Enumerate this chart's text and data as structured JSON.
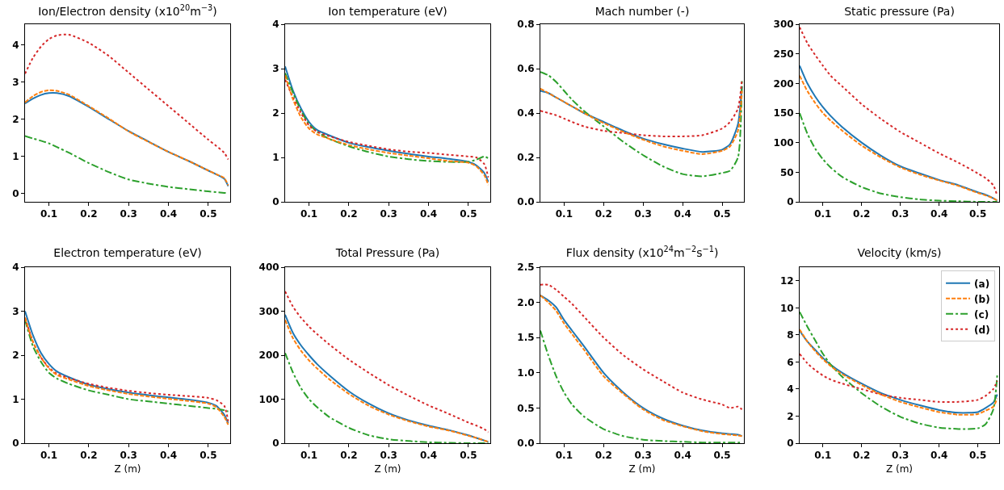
{
  "chart_data": [
    {
      "type": "line",
      "title": "Ion/Electron density (x10$^{20}$m$^{−3}$)",
      "x": [
        0.04,
        0.06,
        0.08,
        0.1,
        0.12,
        0.15,
        0.2,
        0.25,
        0.3,
        0.35,
        0.4,
        0.45,
        0.5,
        0.52,
        0.54,
        0.55
      ],
      "xlim": [
        0.04,
        0.555
      ],
      "xticks": [
        0.1,
        0.2,
        0.3,
        0.4,
        0.5
      ],
      "ylim": [
        -0.22,
        4.55
      ],
      "yticks": [
        0,
        1,
        2,
        3,
        4
      ],
      "series": [
        {
          "color": "#1f77b4",
          "line_style": "solid",
          "values": [
            2.42,
            2.55,
            2.65,
            2.7,
            2.7,
            2.62,
            2.33,
            2.0,
            1.68,
            1.4,
            1.12,
            0.88,
            0.62,
            0.52,
            0.4,
            0.2
          ]
        },
        {
          "color": "#ff7f0e",
          "line_style": "dashed",
          "values": [
            2.45,
            2.62,
            2.73,
            2.78,
            2.76,
            2.66,
            2.35,
            2.02,
            1.67,
            1.39,
            1.12,
            0.88,
            0.62,
            0.52,
            0.42,
            0.22
          ]
        },
        {
          "color": "#2ca02c",
          "line_style": "dashdot",
          "values": [
            1.55,
            1.48,
            1.42,
            1.35,
            1.25,
            1.1,
            0.82,
            0.58,
            0.38,
            0.27,
            0.18,
            0.12,
            0.06,
            0.04,
            0.02,
            0.01
          ]
        },
        {
          "color": "#d62728",
          "line_style": "dotted",
          "values": [
            3.22,
            3.65,
            3.95,
            4.15,
            4.25,
            4.27,
            4.05,
            3.7,
            3.25,
            2.8,
            2.35,
            1.9,
            1.45,
            1.28,
            1.1,
            0.92
          ]
        }
      ]
    },
    {
      "type": "line",
      "title": "Ion temperature (eV)",
      "x": [
        0.04,
        0.06,
        0.08,
        0.1,
        0.12,
        0.15,
        0.2,
        0.25,
        0.3,
        0.35,
        0.4,
        0.45,
        0.5,
        0.52,
        0.54,
        0.55
      ],
      "xlim": [
        0.04,
        0.555
      ],
      "xticks": [
        0.1,
        0.2,
        0.3,
        0.4,
        0.5
      ],
      "ylim": [
        0,
        4
      ],
      "yticks": [
        0,
        1,
        2,
        3,
        4
      ],
      "series": [
        {
          "color": "#1f77b4",
          "line_style": "solid",
          "values": [
            3.05,
            2.5,
            2.1,
            1.8,
            1.62,
            1.5,
            1.33,
            1.23,
            1.15,
            1.08,
            1.02,
            0.97,
            0.9,
            0.82,
            0.65,
            0.45
          ]
        },
        {
          "color": "#ff7f0e",
          "line_style": "dashed",
          "values": [
            2.85,
            2.3,
            1.9,
            1.65,
            1.52,
            1.42,
            1.28,
            1.18,
            1.1,
            1.04,
            0.98,
            0.92,
            0.88,
            0.8,
            0.6,
            0.38
          ]
        },
        {
          "color": "#2ca02c",
          "line_style": "dashdot",
          "values": [
            2.9,
            2.45,
            2.05,
            1.75,
            1.58,
            1.42,
            1.25,
            1.12,
            1.02,
            0.96,
            0.92,
            0.9,
            0.9,
            0.95,
            1.02,
            0.98
          ]
        },
        {
          "color": "#d62728",
          "line_style": "dotted",
          "values": [
            2.75,
            2.35,
            2.0,
            1.72,
            1.58,
            1.48,
            1.35,
            1.26,
            1.18,
            1.13,
            1.1,
            1.06,
            1.02,
            1.0,
            0.85,
            0.55
          ]
        }
      ]
    },
    {
      "type": "line",
      "title": "Mach number (-)",
      "x": [
        0.04,
        0.06,
        0.08,
        0.1,
        0.12,
        0.15,
        0.2,
        0.25,
        0.3,
        0.35,
        0.4,
        0.45,
        0.5,
        0.52,
        0.54,
        0.55
      ],
      "xlim": [
        0.04,
        0.555
      ],
      "xticks": [
        0.1,
        0.2,
        0.3,
        0.4,
        0.5
      ],
      "ylim": [
        0,
        0.8
      ],
      "yticks": [
        {
          "value": 0,
          "label": "0.0"
        },
        0.2,
        0.4,
        0.6,
        0.8
      ],
      "series": [
        {
          "color": "#1f77b4",
          "line_style": "solid",
          "values": [
            0.5,
            0.49,
            0.47,
            0.45,
            0.43,
            0.4,
            0.36,
            0.32,
            0.285,
            0.26,
            0.24,
            0.225,
            0.235,
            0.26,
            0.35,
            0.52
          ]
        },
        {
          "color": "#ff7f0e",
          "line_style": "dashed",
          "values": [
            0.51,
            0.49,
            0.47,
            0.45,
            0.43,
            0.4,
            0.355,
            0.315,
            0.28,
            0.25,
            0.23,
            0.215,
            0.23,
            0.25,
            0.32,
            0.5
          ]
        },
        {
          "color": "#2ca02c",
          "line_style": "dashdot",
          "values": [
            0.585,
            0.57,
            0.54,
            0.5,
            0.46,
            0.41,
            0.34,
            0.27,
            0.21,
            0.16,
            0.125,
            0.115,
            0.13,
            0.14,
            0.2,
            0.55
          ]
        },
        {
          "color": "#d62728",
          "line_style": "dotted",
          "values": [
            0.41,
            0.4,
            0.39,
            0.375,
            0.36,
            0.34,
            0.32,
            0.31,
            0.3,
            0.295,
            0.295,
            0.3,
            0.33,
            0.36,
            0.42,
            0.55
          ]
        }
      ]
    },
    {
      "type": "line",
      "title": "Static pressure (Pa)",
      "x": [
        0.04,
        0.06,
        0.08,
        0.1,
        0.12,
        0.15,
        0.2,
        0.25,
        0.3,
        0.35,
        0.4,
        0.45,
        0.5,
        0.52,
        0.54,
        0.55
      ],
      "xlim": [
        0.04,
        0.555
      ],
      "xticks": [
        0.1,
        0.2,
        0.3,
        0.4,
        0.5
      ],
      "ylim": [
        0,
        300
      ],
      "yticks": [
        0,
        50,
        100,
        150,
        200,
        250,
        300
      ],
      "series": [
        {
          "color": "#1f77b4",
          "line_style": "solid",
          "values": [
            230,
            200,
            178,
            160,
            145,
            126,
            100,
            78,
            60,
            48,
            37,
            28,
            16,
            12,
            6,
            2
          ]
        },
        {
          "color": "#ff7f0e",
          "line_style": "dashed",
          "values": [
            213,
            187,
            167,
            150,
            137,
            120,
            95,
            75,
            58,
            46,
            36,
            27,
            15,
            11,
            6,
            2
          ]
        },
        {
          "color": "#2ca02c",
          "line_style": "dashdot",
          "values": [
            150,
            115,
            90,
            72,
            58,
            42,
            25,
            14,
            8,
            4,
            2,
            1,
            0,
            0,
            0,
            0
          ]
        },
        {
          "color": "#d62728",
          "line_style": "dotted",
          "values": [
            295,
            268,
            248,
            230,
            213,
            195,
            165,
            140,
            118,
            100,
            82,
            66,
            48,
            40,
            28,
            10
          ]
        }
      ]
    },
    {
      "type": "line",
      "title": "Electron temperature (eV)",
      "xlabel": "Z (m)",
      "x": [
        0.04,
        0.06,
        0.08,
        0.1,
        0.12,
        0.15,
        0.2,
        0.25,
        0.3,
        0.35,
        0.4,
        0.45,
        0.5,
        0.52,
        0.54,
        0.55
      ],
      "xlim": [
        0.04,
        0.555
      ],
      "xticks": [
        0.1,
        0.2,
        0.3,
        0.4,
        0.5
      ],
      "ylim": [
        0,
        4
      ],
      "yticks": [
        0,
        1,
        2,
        3,
        4
      ],
      "series": [
        {
          "color": "#1f77b4",
          "line_style": "solid",
          "values": [
            3.0,
            2.45,
            2.05,
            1.8,
            1.63,
            1.5,
            1.33,
            1.23,
            1.15,
            1.09,
            1.04,
            0.99,
            0.92,
            0.85,
            0.65,
            0.45
          ]
        },
        {
          "color": "#ff7f0e",
          "line_style": "dashed",
          "values": [
            2.85,
            2.3,
            1.95,
            1.7,
            1.55,
            1.45,
            1.3,
            1.2,
            1.12,
            1.06,
            1.01,
            0.96,
            0.9,
            0.82,
            0.6,
            0.42
          ]
        },
        {
          "color": "#2ca02c",
          "line_style": "dashdot",
          "values": [
            2.8,
            2.2,
            1.85,
            1.6,
            1.47,
            1.35,
            1.2,
            1.1,
            1.0,
            0.95,
            0.9,
            0.85,
            0.8,
            0.78,
            0.75,
            0.72
          ]
        },
        {
          "color": "#d62728",
          "line_style": "dotted",
          "values": [
            2.85,
            2.3,
            1.95,
            1.72,
            1.58,
            1.48,
            1.35,
            1.26,
            1.19,
            1.14,
            1.1,
            1.07,
            1.03,
            0.98,
            0.85,
            0.5
          ]
        }
      ]
    },
    {
      "type": "line",
      "title": "Total Pressure (Pa)",
      "xlabel": "Z (m)",
      "x": [
        0.04,
        0.06,
        0.08,
        0.1,
        0.12,
        0.15,
        0.2,
        0.25,
        0.3,
        0.35,
        0.4,
        0.45,
        0.5,
        0.52,
        0.54,
        0.55
      ],
      "xlim": [
        0.04,
        0.555
      ],
      "xticks": [
        0.1,
        0.2,
        0.3,
        0.4,
        0.5
      ],
      "ylim": [
        0,
        400
      ],
      "yticks": [
        0,
        100,
        200,
        300,
        400
      ],
      "series": [
        {
          "color": "#1f77b4",
          "line_style": "solid",
          "values": [
            292,
            250,
            222,
            200,
            180,
            155,
            118,
            90,
            68,
            52,
            40,
            30,
            18,
            12,
            6,
            3
          ]
        },
        {
          "color": "#ff7f0e",
          "line_style": "dashed",
          "values": [
            280,
            238,
            210,
            188,
            170,
            146,
            112,
            85,
            65,
            50,
            38,
            29,
            17,
            12,
            6,
            3
          ]
        },
        {
          "color": "#2ca02c",
          "line_style": "dashdot",
          "values": [
            205,
            160,
            125,
            100,
            82,
            60,
            35,
            18,
            9,
            5,
            2,
            1,
            0,
            0,
            0,
            0
          ]
        },
        {
          "color": "#d62728",
          "line_style": "dotted",
          "values": [
            345,
            310,
            285,
            265,
            248,
            225,
            190,
            160,
            132,
            108,
            86,
            67,
            47,
            40,
            32,
            25
          ]
        }
      ]
    },
    {
      "type": "line",
      "title": "Flux density (x10$^{24}$m$^{−2}$s$^{−1}$)",
      "xlabel": "Z (m)",
      "x": [
        0.04,
        0.06,
        0.08,
        0.1,
        0.12,
        0.15,
        0.2,
        0.25,
        0.3,
        0.35,
        0.4,
        0.45,
        0.5,
        0.52,
        0.54,
        0.55
      ],
      "xlim": [
        0.04,
        0.555
      ],
      "xticks": [
        0.1,
        0.2,
        0.3,
        0.4,
        0.5
      ],
      "ylim": [
        0,
        2.5
      ],
      "yticks": [
        {
          "value": 0,
          "label": "0.0"
        },
        0.5,
        {
          "value": 1,
          "label": "1.0"
        },
        1.5,
        {
          "value": 2,
          "label": "2.0"
        },
        2.5
      ],
      "series": [
        {
          "color": "#1f77b4",
          "line_style": "solid",
          "values": [
            2.1,
            2.03,
            1.93,
            1.75,
            1.6,
            1.38,
            1.0,
            0.72,
            0.5,
            0.35,
            0.25,
            0.18,
            0.14,
            0.13,
            0.12,
            0.1
          ]
        },
        {
          "color": "#ff7f0e",
          "line_style": "dashed",
          "values": [
            2.1,
            2.0,
            1.88,
            1.7,
            1.55,
            1.33,
            0.95,
            0.7,
            0.48,
            0.33,
            0.24,
            0.17,
            0.13,
            0.12,
            0.11,
            0.1
          ]
        },
        {
          "color": "#2ca02c",
          "line_style": "dashdot",
          "values": [
            1.6,
            1.25,
            0.95,
            0.72,
            0.55,
            0.38,
            0.2,
            0.1,
            0.05,
            0.03,
            0.02,
            0.01,
            0.01,
            0.01,
            0.01,
            0.01
          ]
        },
        {
          "color": "#d62728",
          "line_style": "dotted",
          "values": [
            2.25,
            2.25,
            2.18,
            2.08,
            1.98,
            1.8,
            1.5,
            1.25,
            1.05,
            0.88,
            0.72,
            0.62,
            0.55,
            0.5,
            0.52,
            0.48
          ]
        }
      ]
    },
    {
      "type": "line",
      "title": "Velocity (km/s)",
      "xlabel": "Z (m)",
      "x": [
        0.04,
        0.06,
        0.08,
        0.1,
        0.12,
        0.15,
        0.2,
        0.25,
        0.3,
        0.35,
        0.4,
        0.45,
        0.5,
        0.52,
        0.54,
        0.55
      ],
      "xlim": [
        0.04,
        0.555
      ],
      "xticks": [
        0.1,
        0.2,
        0.3,
        0.4,
        0.5
      ],
      "ylim": [
        0,
        13
      ],
      "yticks": [
        0,
        2,
        4,
        6,
        8,
        10,
        12
      ],
      "legend": "top right",
      "series": [
        {
          "name": "(a)",
          "color": "#1f77b4",
          "line_style": "solid",
          "values": [
            8.3,
            7.5,
            6.9,
            6.3,
            5.8,
            5.2,
            4.4,
            3.7,
            3.2,
            2.8,
            2.45,
            2.25,
            2.3,
            2.6,
            3.0,
            3.6
          ]
        },
        {
          "name": "(b)",
          "color": "#ff7f0e",
          "line_style": "dashed",
          "values": [
            8.4,
            7.5,
            6.8,
            6.2,
            5.7,
            5.1,
            4.3,
            3.6,
            3.05,
            2.65,
            2.3,
            2.1,
            2.15,
            2.4,
            2.7,
            3.3
          ]
        },
        {
          "name": "(c)",
          "color": "#2ca02c",
          "line_style": "dashdot",
          "values": [
            9.7,
            8.6,
            7.6,
            6.6,
            5.8,
            4.9,
            3.7,
            2.7,
            1.95,
            1.45,
            1.15,
            1.05,
            1.1,
            1.4,
            2.5,
            5.0
          ]
        },
        {
          "name": "(d)",
          "color": "#d62728",
          "line_style": "dotted",
          "values": [
            6.6,
            5.9,
            5.4,
            5.0,
            4.7,
            4.4,
            4.0,
            3.6,
            3.35,
            3.2,
            3.05,
            3.05,
            3.2,
            3.5,
            4.0,
            4.6
          ]
        }
      ]
    }
  ]
}
